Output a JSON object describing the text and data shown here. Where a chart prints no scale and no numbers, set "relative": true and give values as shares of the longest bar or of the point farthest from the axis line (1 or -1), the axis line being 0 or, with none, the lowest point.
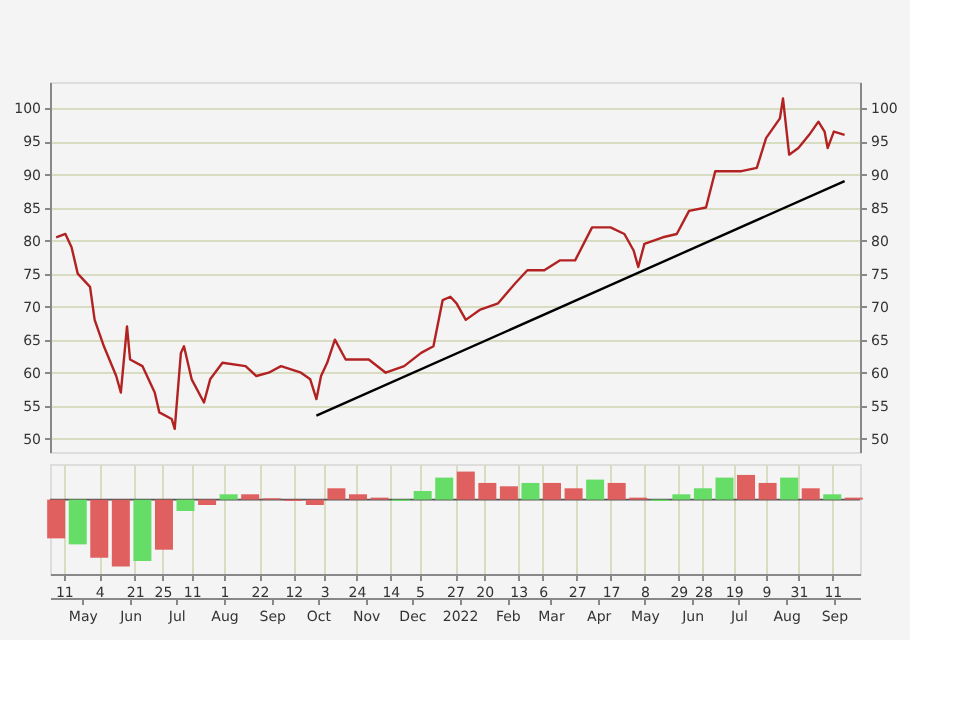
{
  "chart_data": [
    {
      "type": "line",
      "series": [
        {
          "color": "#b22222",
          "x": [
            "2021-04-14",
            "2021-04-20",
            "2021-04-24",
            "2021-04-28",
            "2021-05-06",
            "2021-05-09",
            "2021-05-15",
            "2021-05-23",
            "2021-05-26",
            "2021-05-30",
            "2021-06-01",
            "2021-06-09",
            "2021-06-17",
            "2021-06-20",
            "2021-06-28",
            "2021-06-30",
            "2021-07-04",
            "2021-07-06",
            "2021-07-11",
            "2021-07-19",
            "2021-07-23",
            "2021-07-31",
            "2021-08-15",
            "2021-08-22",
            "2021-08-30",
            "2021-09-07",
            "2021-09-20",
            "2021-09-26",
            "2021-09-30",
            "2021-10-03",
            "2021-10-07",
            "2021-10-12",
            "2021-10-19",
            "2021-11-03",
            "2021-11-14",
            "2021-11-26",
            "2021-12-07",
            "2021-12-15",
            "2021-12-21",
            "2021-12-26",
            "2021-12-30",
            "2022-01-05",
            "2022-01-14",
            "2022-01-26",
            "2022-02-06",
            "2022-02-14",
            "2022-02-25",
            "2022-03-07",
            "2022-03-17",
            "2022-03-28",
            "2022-04-09",
            "2022-04-18",
            "2022-04-24",
            "2022-04-27",
            "2022-05-01",
            "2022-05-13",
            "2022-05-22",
            "2022-05-30",
            "2022-06-10",
            "2022-06-16",
            "2022-06-22",
            "2022-07-03",
            "2022-07-13",
            "2022-07-19",
            "2022-07-28",
            "2022-07-30",
            "2022-08-03",
            "2022-08-09",
            "2022-08-16",
            "2022-08-22",
            "2022-08-26",
            "2022-08-28",
            "2022-09-01",
            "2022-09-08"
          ],
          "values": [
            80.5,
            81,
            79,
            75,
            73,
            68,
            64,
            59.5,
            57,
            67,
            62,
            61,
            57,
            54,
            53,
            51.5,
            63,
            64,
            59,
            55.5,
            59,
            61.5,
            61,
            59.5,
            60,
            61,
            60,
            59,
            56,
            59.5,
            61.5,
            65,
            62,
            62,
            60,
            61,
            63,
            64,
            71,
            71.5,
            70.5,
            68,
            69.5,
            70.5,
            73.5,
            75.5,
            75.5,
            77,
            77,
            82,
            82,
            81,
            78.5,
            76,
            79.5,
            80.5,
            81,
            84.5,
            85,
            90.5,
            90.5,
            90.5,
            91,
            95.5,
            98.5,
            101.5,
            93,
            94,
            96,
            98,
            96.5,
            94,
            96.5,
            96
          ]
        },
        {
          "type": "line",
          "color": "#000000",
          "axis": "y2",
          "x": [
            "2021-09-30",
            "2022-09-08"
          ],
          "values": [
            53.5,
            89
          ]
        }
      ],
      "xlim": [
        "2021-04-10",
        "2022-09-18"
      ],
      "xticks": [
        "2021-04-19",
        "2021-05-12",
        "2021-06-04",
        "2021-06-22",
        "2021-07-11",
        "2021-08-01",
        "2021-08-24",
        "2021-09-15",
        "2021-10-05",
        "2021-10-26",
        "2021-11-17",
        "2021-12-06",
        "2021-12-29",
        "2022-01-17",
        "2022-02-08",
        "2022-02-24",
        "2022-03-18",
        "2022-04-09",
        "2022-05-01",
        "2022-05-23",
        "2022-06-08",
        "2022-06-28",
        "2022-07-19",
        "2022-08-09",
        "2022-08-31"
      ],
      "ylim": [
        48,
        104
      ],
      "yticks": [
        50,
        55,
        60,
        65,
        70,
        75,
        80,
        85,
        90,
        95,
        100
      ],
      "y2lim": [
        48,
        104
      ],
      "y2ticks": [
        50,
        55,
        60,
        65,
        70,
        75,
        80,
        85,
        90,
        95,
        100
      ],
      "grid": true,
      "tick_labels": "y"
    },
    {
      "type": "bar",
      "relative": true,
      "x": [
        "2021-04-14",
        "2021-04-28",
        "2021-05-12",
        "2021-05-26",
        "2021-06-09",
        "2021-06-23",
        "2021-07-07",
        "2021-07-21",
        "2021-08-04",
        "2021-08-18",
        "2021-09-01",
        "2021-09-15",
        "2021-09-29",
        "2021-10-13",
        "2021-10-27",
        "2021-11-10",
        "2021-11-24",
        "2021-12-08",
        "2021-12-22",
        "2022-01-05",
        "2022-01-19",
        "2022-02-02",
        "2022-02-16",
        "2022-03-02",
        "2022-03-16",
        "2022-03-30",
        "2022-04-13",
        "2022-04-27",
        "2022-05-11",
        "2022-05-25",
        "2022-06-08",
        "2022-06-22",
        "2022-07-06",
        "2022-07-20",
        "2022-08-03",
        "2022-08-17",
        "2022-08-31",
        "2022-09-14"
      ],
      "values": [
        -0.58,
        -0.67,
        -0.87,
        -1,
        -0.92,
        -0.75,
        -0.17,
        -0.08,
        0.08,
        0.08,
        0.02,
        -0.02,
        -0.08,
        0.17,
        0.08,
        0.03,
        -0.02,
        0.13,
        0.33,
        0.42,
        0.25,
        0.2,
        0.25,
        0.25,
        0.17,
        0.3,
        0.25,
        0.03,
        -0.02,
        0.08,
        0.17,
        0.33,
        0.37,
        0.25,
        0.33,
        0.17,
        0.08,
        0.03
      ],
      "colors": [
        "#e06060",
        "#66dd66",
        "#e06060",
        "#e06060",
        "#66dd66",
        "#e06060",
        "#66dd66",
        "#e06060",
        "#66dd66",
        "#e06060",
        "#e06060",
        "#e06060",
        "#e06060",
        "#e06060",
        "#e06060",
        "#e06060",
        "#66dd66",
        "#66dd66",
        "#66dd66",
        "#e06060",
        "#e06060",
        "#e06060",
        "#66dd66",
        "#e06060",
        "#e06060",
        "#66dd66",
        "#e06060",
        "#e06060",
        "#66dd66",
        "#66dd66",
        "#66dd66",
        "#66dd66",
        "#e06060",
        "#e06060",
        "#66dd66",
        "#e06060",
        "#66dd66",
        "#e06060"
      ],
      "xlim": [
        "2021-04-10",
        "2022-09-18"
      ],
      "xticks": [
        {
          "value": "2021-04-19",
          "label": "11"
        },
        {
          "value": "2021-05-12",
          "label": "4"
        },
        {
          "value": "2021-06-04",
          "label": "21"
        },
        {
          "value": "2021-06-22",
          "label": "25"
        },
        {
          "value": "2021-07-11",
          "label": "11"
        },
        {
          "value": "2021-08-01",
          "label": "1"
        },
        {
          "value": "2021-08-24",
          "label": "22"
        },
        {
          "value": "2021-09-15",
          "label": "12"
        },
        {
          "value": "2021-10-05",
          "label": "3"
        },
        {
          "value": "2021-10-26",
          "label": "24"
        },
        {
          "value": "2021-11-17",
          "label": "14"
        },
        {
          "value": "2021-12-06",
          "label": "5"
        },
        {
          "value": "2021-12-29",
          "label": "27"
        },
        {
          "value": "2022-01-17",
          "label": "20"
        },
        {
          "value": "2022-02-08",
          "label": "13"
        },
        {
          "value": "2022-02-24",
          "label": "6"
        },
        {
          "value": "2022-03-18",
          "label": "27"
        },
        {
          "value": "2022-04-09",
          "label": "17"
        },
        {
          "value": "2022-05-01",
          "label": "8"
        },
        {
          "value": "2022-05-23",
          "label": "29"
        },
        {
          "value": "2022-06-08",
          "label": "28"
        },
        {
          "value": "2022-06-28",
          "label": "19"
        },
        {
          "value": "2022-07-19",
          "label": "9"
        },
        {
          "value": "2022-08-09",
          "label": "31"
        },
        {
          "value": "2022-08-31",
          "label": "11"
        }
      ],
      "x2lim": [
        "2021-04-10",
        "2022-09-18"
      ],
      "x2ticks": [
        {
          "value": "2021-05-01",
          "label": "May"
        },
        {
          "value": "2021-06-01",
          "label": "Jun"
        },
        {
          "value": "2021-07-01",
          "label": "Jul"
        },
        {
          "value": "2021-08-01",
          "label": "Aug"
        },
        {
          "value": "2021-09-01",
          "label": "Sep"
        },
        {
          "value": "2021-10-01",
          "label": "Oct"
        },
        {
          "value": "2021-11-01",
          "label": "Nov"
        },
        {
          "value": "2021-12-01",
          "label": "Dec"
        },
        {
          "value": "2022-01-01",
          "label": "2022"
        },
        {
          "value": "2022-02-01",
          "label": "Feb"
        },
        {
          "value": "2022-03-01",
          "label": "Mar"
        },
        {
          "value": "2022-04-01",
          "label": "Apr"
        },
        {
          "value": "2022-05-01",
          "label": "May"
        },
        {
          "value": "2022-06-01",
          "label": "Jun"
        },
        {
          "value": "2022-07-01",
          "label": "Jul"
        },
        {
          "value": "2022-08-01",
          "label": "Aug"
        },
        {
          "value": "2022-09-01",
          "label": "Sep"
        }
      ],
      "grid": true,
      "tick_labels": "x"
    }
  ]
}
